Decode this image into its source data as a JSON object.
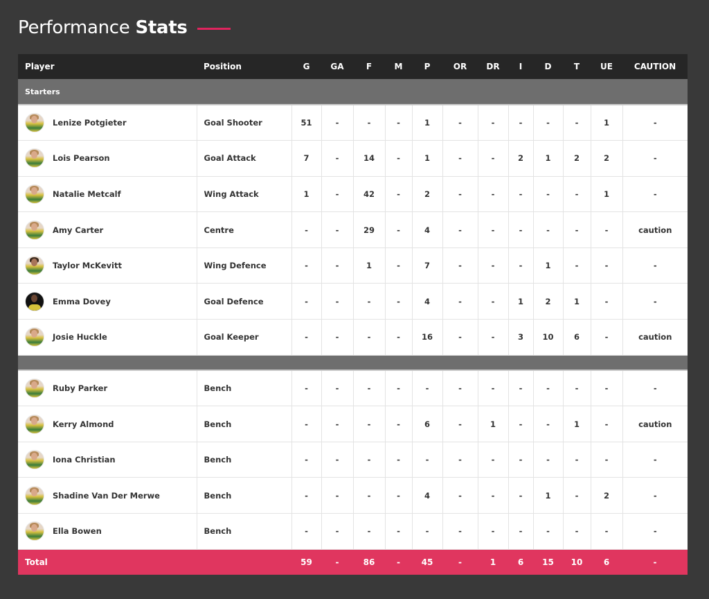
{
  "title": {
    "light": "Performance",
    "bold": "Stats"
  },
  "accent_color": "#e0245e",
  "columns": [
    "Player",
    "Position",
    "G",
    "GA",
    "F",
    "M",
    "P",
    "OR",
    "DR",
    "I",
    "D",
    "T",
    "UE",
    "CAUTION"
  ],
  "sections": {
    "starters_label": "Starters",
    "bench_label": ""
  },
  "starters": [
    {
      "name": "Lenize Potgieter",
      "position": "Goal Shooter",
      "avatar": "light",
      "stats": [
        "51",
        "-",
        "-",
        "-",
        "1",
        "-",
        "-",
        "-",
        "-",
        "-",
        "1",
        "-"
      ]
    },
    {
      "name": "Lois Pearson",
      "position": "Goal Attack",
      "avatar": "light",
      "stats": [
        "7",
        "-",
        "14",
        "-",
        "1",
        "-",
        "-",
        "2",
        "1",
        "2",
        "2",
        "-"
      ]
    },
    {
      "name": "Natalie Metcalf",
      "position": "Wing Attack",
      "avatar": "light",
      "stats": [
        "1",
        "-",
        "42",
        "-",
        "2",
        "-",
        "-",
        "-",
        "-",
        "-",
        "1",
        "-"
      ]
    },
    {
      "name": "Amy Carter",
      "position": "Centre",
      "avatar": "light",
      "stats": [
        "-",
        "-",
        "29",
        "-",
        "4",
        "-",
        "-",
        "-",
        "-",
        "-",
        "-",
        "caution"
      ]
    },
    {
      "name": "Taylor McKevitt",
      "position": "Wing Defence",
      "avatar": "medium",
      "stats": [
        "-",
        "-",
        "1",
        "-",
        "7",
        "-",
        "-",
        "-",
        "1",
        "-",
        "-",
        "-"
      ]
    },
    {
      "name": "Emma Dovey",
      "position": "Goal Defence",
      "avatar": "dark",
      "stats": [
        "-",
        "-",
        "-",
        "-",
        "4",
        "-",
        "-",
        "1",
        "2",
        "1",
        "-",
        "-"
      ]
    },
    {
      "name": "Josie Huckle",
      "position": "Goal Keeper",
      "avatar": "light",
      "stats": [
        "-",
        "-",
        "-",
        "-",
        "16",
        "-",
        "-",
        "3",
        "10",
        "6",
        "-",
        "caution"
      ]
    }
  ],
  "bench": [
    {
      "name": "Ruby Parker",
      "position": "Bench",
      "avatar": "light",
      "stats": [
        "-",
        "-",
        "-",
        "-",
        "-",
        "-",
        "-",
        "-",
        "-",
        "-",
        "-",
        "-"
      ]
    },
    {
      "name": "Kerry Almond",
      "position": "Bench",
      "avatar": "light",
      "stats": [
        "-",
        "-",
        "-",
        "-",
        "6",
        "-",
        "1",
        "-",
        "-",
        "1",
        "-",
        "caution"
      ]
    },
    {
      "name": "Iona Christian",
      "position": "Bench",
      "avatar": "light",
      "stats": [
        "-",
        "-",
        "-",
        "-",
        "-",
        "-",
        "-",
        "-",
        "-",
        "-",
        "-",
        "-"
      ]
    },
    {
      "name": "Shadine Van Der Merwe",
      "position": "Bench",
      "avatar": "light",
      "stats": [
        "-",
        "-",
        "-",
        "-",
        "4",
        "-",
        "-",
        "-",
        "1",
        "-",
        "2",
        "-"
      ]
    },
    {
      "name": "Ella Bowen",
      "position": "Bench",
      "avatar": "light",
      "stats": [
        "-",
        "-",
        "-",
        "-",
        "-",
        "-",
        "-",
        "-",
        "-",
        "-",
        "-",
        "-"
      ]
    }
  ],
  "total": {
    "label": "Total",
    "stats": [
      "59",
      "-",
      "86",
      "-",
      "45",
      "-",
      "1",
      "6",
      "15",
      "10",
      "6",
      "-"
    ]
  }
}
